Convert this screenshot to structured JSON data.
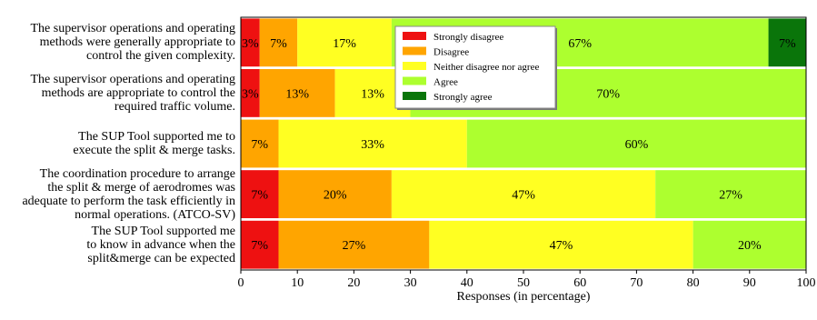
{
  "chart_data": {
    "type": "bar",
    "orientation": "horizontal",
    "stacked": true,
    "categories": [
      "The supervisor operations and operating\nmethods were generally appropriate to\ncontrol the given complexity.",
      "The supervisor operations and operating\nmethods are appropriate to control the\nrequired traffic volume.",
      "The SUP Tool supported me to\nexecute the split & merge tasks.",
      "The coordination procedure to arrange\nthe split & merge of aerodromes was\nadequate to perform the task efficiently in\nnormal operations.  (ATCO-SV)",
      "The SUP Tool supported me\nto know in advance when the\nsplit&merge can be expected"
    ],
    "series": [
      {
        "name": "Strongly disagree",
        "color": "#ee1111",
        "values": [
          3.33,
          3.33,
          0,
          6.67,
          6.67
        ],
        "labels": [
          "3%",
          "3%",
          "",
          "7%",
          "7%"
        ]
      },
      {
        "name": "Disagree",
        "color": "#ffa500",
        "values": [
          6.67,
          13.33,
          6.67,
          20,
          26.67
        ],
        "labels": [
          "7%",
          "13%",
          "7%",
          "20%",
          "27%"
        ]
      },
      {
        "name": "Neither disagree nor agree",
        "color": "#ffff22",
        "values": [
          16.67,
          13.33,
          33.33,
          46.67,
          46.67
        ],
        "labels": [
          "17%",
          "13%",
          "33%",
          "47%",
          "47%"
        ]
      },
      {
        "name": "Agree",
        "color": "#adff2f",
        "values": [
          66.67,
          70,
          60,
          26.67,
          20
        ],
        "labels": [
          "67%",
          "70%",
          "60%",
          "27%",
          "20%"
        ]
      },
      {
        "name": "Strongly agree",
        "color": "#0a750a",
        "values": [
          6.67,
          0,
          0,
          0,
          0
        ],
        "labels": [
          "7%",
          "",
          "",
          "",
          ""
        ]
      }
    ],
    "xlabel": "Responses (in percentage)",
    "xlim": [
      0,
      100
    ],
    "xticks": [
      0,
      10,
      20,
      30,
      40,
      50,
      60,
      70,
      80,
      90,
      100
    ],
    "legend": "top-center",
    "grid": false
  }
}
